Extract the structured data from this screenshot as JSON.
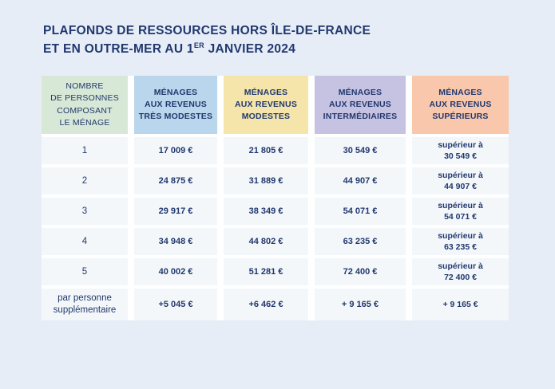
{
  "title": {
    "line1": "PLAFONDS DE RESSOURCES HORS ÎLE-DE-FRANCE",
    "line2_prefix": "ET EN OUTRE-MER AU 1",
    "line2_sup": "ER",
    "line2_suffix": " JANVIER 2024"
  },
  "colors": {
    "page_background": "#e6edf7",
    "cell_background": "#f4f7fa",
    "text_navy": "#21386e",
    "header_menage": "#d8e8d6",
    "header_tres_modestes": "#b9d6ec",
    "header_modestes": "#f5e5ab",
    "header_intermediaires": "#c6c2e1",
    "header_superieurs": "#f8c7ac"
  },
  "table": {
    "headers": {
      "menage": "NOMBRE\nDE PERSONNES\nCOMPOSANT\nLE MÉNAGE",
      "tres_modestes": "MÉNAGES\nAUX REVENUS\nTRÈS MODESTES",
      "modestes": "MÉNAGES\nAUX REVENUS\nMODESTES",
      "intermediaires": "MÉNAGES\nAUX REVENUS\nINTERMÉDIAIRES",
      "superieurs": "MÉNAGES\nAUX REVENUS\nSUPÉRIEURS"
    },
    "rows": [
      {
        "label": "1",
        "tres_modestes": "17 009 €",
        "modestes": "21 805 €",
        "intermediaires": "30 549 €",
        "superieurs": [
          "supérieur à",
          "30 549 €"
        ]
      },
      {
        "label": "2",
        "tres_modestes": "24 875 €",
        "modestes": "31 889 €",
        "intermediaires": "44 907 €",
        "superieurs": [
          "supérieur à",
          "44 907 €"
        ]
      },
      {
        "label": "3",
        "tres_modestes": "29 917 €",
        "modestes": "38 349 €",
        "intermediaires": "54 071 €",
        "superieurs": [
          "supérieur à",
          "54 071 €"
        ]
      },
      {
        "label": "4",
        "tres_modestes": "34 948 €",
        "modestes": "44 802 €",
        "intermediaires": "63 235 €",
        "superieurs": [
          "supérieur à",
          "63 235 €"
        ]
      },
      {
        "label": "5",
        "tres_modestes": "40 002 €",
        "modestes": "51 281 €",
        "intermediaires": "72 400 €",
        "superieurs": [
          "supérieur à",
          "72 400 €"
        ]
      },
      {
        "label": "par personne\nsupplémentaire",
        "tres_modestes": "+5 045 €",
        "modestes": "+6 462 €",
        "intermediaires": "+ 9 165 €",
        "superieurs": [
          "+ 9 165 €"
        ]
      }
    ]
  },
  "chart_data": {
    "type": "table",
    "title": "Plafonds de ressources hors Île-de-France et en Outre-mer au 1er janvier 2024",
    "columns": [
      "Nombre de personnes composant le ménage",
      "Ménages aux revenus très modestes",
      "Ménages aux revenus modestes",
      "Ménages aux revenus intermédiaires",
      "Ménages aux revenus supérieurs"
    ],
    "rows": [
      [
        "1",
        "17 009 €",
        "21 805 €",
        "30 549 €",
        "supérieur à 30 549 €"
      ],
      [
        "2",
        "24 875 €",
        "31 889 €",
        "44 907 €",
        "supérieur à 44 907 €"
      ],
      [
        "3",
        "29 917 €",
        "38 349 €",
        "54 071 €",
        "supérieur à 54 071 €"
      ],
      [
        "4",
        "34 948 €",
        "44 802 €",
        "63 235 €",
        "supérieur à 63 235 €"
      ],
      [
        "5",
        "40 002 €",
        "51 281 €",
        "72 400 €",
        "supérieur à 72 400 €"
      ],
      [
        "par personne supplémentaire",
        "+5 045 €",
        "+6 462 €",
        "+ 9 165 €",
        "+ 9 165 €"
      ]
    ]
  }
}
